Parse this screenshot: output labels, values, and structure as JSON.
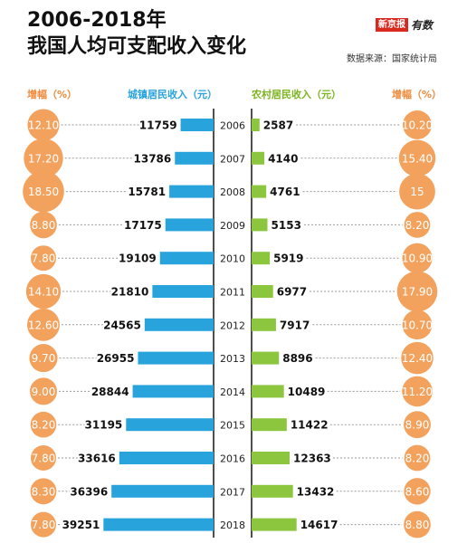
{
  "header": {
    "title_line1": "2006-2018年",
    "title_line2": "我国人均可支配收入变化",
    "brand_box": "新京报",
    "brand_script": "有数",
    "source": "数据来源：国家统计局"
  },
  "columns": {
    "urban_growth": "增幅（%）",
    "urban_income": "城镇居民收入（元）",
    "rural_income": "农村居民收入（元）",
    "rural_growth": "增幅（%）"
  },
  "colors": {
    "urban_bar": "#29a3dc",
    "rural_bar": "#8cc63f",
    "growth_circle": "#f3a25d",
    "axis": "#222222",
    "leader": "#9a9a9a"
  },
  "chart_data": {
    "type": "bar",
    "categories": [
      "2006",
      "2007",
      "2008",
      "2009",
      "2010",
      "2011",
      "2012",
      "2013",
      "2014",
      "2015",
      "2016",
      "2017",
      "2018"
    ],
    "series": [
      {
        "name": "城镇居民收入（元）",
        "values": [
          11759,
          13786,
          15781,
          17175,
          19109,
          21810,
          24565,
          26955,
          28844,
          31195,
          33616,
          36396,
          39251
        ]
      },
      {
        "name": "农村居民收入（元）",
        "values": [
          2587,
          4140,
          4761,
          5153,
          5919,
          6977,
          7917,
          8896,
          10489,
          11422,
          12363,
          13432,
          14617
        ]
      },
      {
        "name": "增幅（%）",
        "values": [
          12.1,
          17.2,
          18.5,
          8.8,
          7.8,
          14.1,
          12.6,
          9.7,
          9.0,
          8.2,
          7.8,
          8.3,
          7.8
        ],
        "labels": [
          "12.10",
          "17.20",
          "18.50",
          "8.80",
          "7.80",
          "14.10",
          "12.60",
          "9.70",
          "9.00",
          "8.20",
          "7.80",
          "8.30",
          "7.80"
        ]
      },
      {
        "name": "增幅（%）",
        "values": [
          10.2,
          15.4,
          15,
          8.2,
          10.9,
          17.9,
          10.7,
          12.4,
          11.2,
          8.9,
          8.2,
          8.6,
          8.8
        ],
        "labels": [
          "10.20",
          "15.40",
          "15",
          "8.20",
          "10.90",
          "17.90",
          "10.70",
          "12.40",
          "11.20",
          "8.90",
          "8.20",
          "8.60",
          "8.80"
        ]
      }
    ]
  }
}
